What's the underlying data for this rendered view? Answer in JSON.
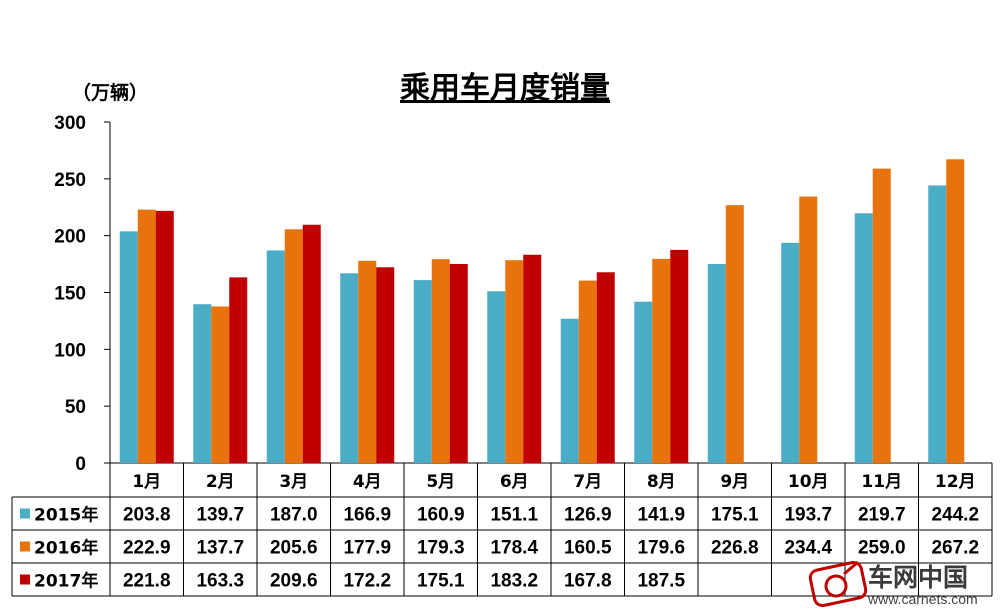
{
  "chart_data": {
    "type": "bar",
    "title": "乘用车月度销量",
    "unit_label": "（万辆）",
    "ylim": [
      0,
      300
    ],
    "yticks": [
      0,
      50,
      100,
      150,
      200,
      250,
      300
    ],
    "ytick_labels": [
      "0",
      "50",
      "100",
      "150",
      "200",
      "250",
      "300"
    ],
    "grid": false,
    "legend": "in data table",
    "categories": [
      "1月",
      "2月",
      "3月",
      "4月",
      "5月",
      "6月",
      "7月",
      "8月",
      "9月",
      "10月",
      "11月",
      "12月"
    ],
    "series": [
      {
        "name": "2015年",
        "color": "#4bacc6",
        "values": [
          203.8,
          139.7,
          187.0,
          166.9,
          160.9,
          151.1,
          126.9,
          141.9,
          175.1,
          193.7,
          219.7,
          244.2
        ],
        "labels": [
          "203.8",
          "139.7",
          "187.0",
          "166.9",
          "160.9",
          "151.1",
          "126.9",
          "141.9",
          "175.1",
          "193.7",
          "219.7",
          "244.2"
        ]
      },
      {
        "name": "2016年",
        "color": "#e8730c",
        "values": [
          222.9,
          137.7,
          205.6,
          177.9,
          179.3,
          178.4,
          160.5,
          179.6,
          226.8,
          234.4,
          259.0,
          267.2
        ],
        "labels": [
          "222.9",
          "137.7",
          "205.6",
          "177.9",
          "179.3",
          "178.4",
          "160.5",
          "179.6",
          "226.8",
          "234.4",
          "259.0",
          "267.2"
        ]
      },
      {
        "name": "2017年",
        "color": "#c00000",
        "values": [
          221.8,
          163.3,
          209.6,
          172.2,
          175.1,
          183.2,
          167.8,
          187.5,
          null,
          null,
          null,
          null
        ],
        "labels": [
          "221.8",
          "163.3",
          "209.6",
          "172.2",
          "175.1",
          "183.2",
          "167.8",
          "187.5",
          "",
          "",
          "",
          ""
        ]
      }
    ]
  },
  "watermark": {
    "text": "车网中国",
    "url": "www.carnets.com"
  }
}
